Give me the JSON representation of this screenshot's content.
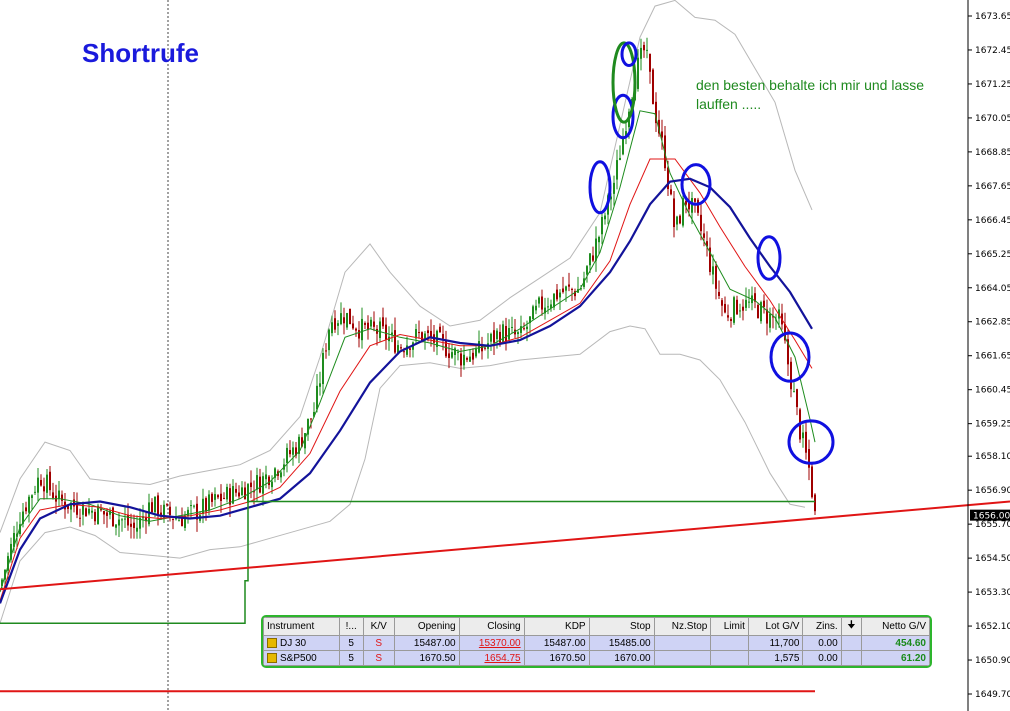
{
  "title": "Shortrufe",
  "annotation": "den besten behalte ich mir und lasse lauffen .....",
  "colors": {
    "background": "#ffffff",
    "title": "#1a1adc",
    "annotation": "#1f8a1f",
    "candle_up": "#1e8c1e",
    "candle_down": "#a00000",
    "ma_fast": "#1e8c1e",
    "ma_mid": "#e01515",
    "ma_slow": "#13139a",
    "bollinger": "#b8b8b8",
    "trendline": "#e01515",
    "marker": "#1010e0"
  },
  "chart_data": {
    "type": "candlestick",
    "y_ticks": [
      "1673.65",
      "1672.45",
      "1671.25",
      "1670.05",
      "1668.85",
      "1667.65",
      "1666.45",
      "1665.25",
      "1664.05",
      "1662.85",
      "1661.65",
      "1660.45",
      "1659.25",
      "1658.10",
      "1656.90",
      "1655.70",
      "1654.50",
      "1653.30",
      "1652.10",
      "1650.90",
      "1649.70"
    ],
    "ylim": [
      1649.0,
      1674.3
    ],
    "current_price": "1656.00",
    "price_path": [
      [
        0,
        1653.5
      ],
      [
        20,
        1656.0
      ],
      [
        40,
        1657.4
      ],
      [
        60,
        1656.5
      ],
      [
        80,
        1656.3
      ],
      [
        100,
        1656.1
      ],
      [
        120,
        1655.9
      ],
      [
        135,
        1655.5
      ],
      [
        150,
        1656.4
      ],
      [
        165,
        1656.1
      ],
      [
        180,
        1655.9
      ],
      [
        200,
        1656.2
      ],
      [
        220,
        1656.6
      ],
      [
        240,
        1656.9
      ],
      [
        260,
        1657.2
      ],
      [
        280,
        1657.8
      ],
      [
        300,
        1658.6
      ],
      [
        315,
        1659.8
      ],
      [
        330,
        1662.9
      ],
      [
        345,
        1663.1
      ],
      [
        360,
        1662.6
      ],
      [
        380,
        1662.5
      ],
      [
        400,
        1662.0
      ],
      [
        420,
        1662.4
      ],
      [
        440,
        1662.1
      ],
      [
        460,
        1661.6
      ],
      [
        480,
        1661.8
      ],
      [
        500,
        1662.5
      ],
      [
        520,
        1662.3
      ],
      [
        540,
        1663.4
      ],
      [
        560,
        1663.9
      ],
      [
        580,
        1664.0
      ],
      [
        600,
        1666.0
      ],
      [
        615,
        1667.9
      ],
      [
        625,
        1669.8
      ],
      [
        635,
        1671.6
      ],
      [
        645,
        1672.5
      ],
      [
        655,
        1670.3
      ],
      [
        665,
        1668.6
      ],
      [
        675,
        1666.0
      ],
      [
        685,
        1667.2
      ],
      [
        695,
        1666.7
      ],
      [
        705,
        1665.6
      ],
      [
        715,
        1664.2
      ],
      [
        725,
        1663.1
      ],
      [
        740,
        1663.5
      ],
      [
        755,
        1663.4
      ],
      [
        770,
        1663.0
      ],
      [
        780,
        1662.9
      ],
      [
        790,
        1661.0
      ],
      [
        800,
        1659.0
      ],
      [
        810,
        1657.5
      ],
      [
        815,
        1656.0
      ]
    ],
    "ma_fast": [
      [
        0,
        1653.3
      ],
      [
        20,
        1655.6
      ],
      [
        40,
        1656.6
      ],
      [
        60,
        1656.6
      ],
      [
        90,
        1656.4
      ],
      [
        120,
        1656.0
      ],
      [
        150,
        1655.8
      ],
      [
        180,
        1656.0
      ],
      [
        210,
        1656.2
      ],
      [
        240,
        1656.6
      ],
      [
        270,
        1657.2
      ],
      [
        300,
        1658.3
      ],
      [
        320,
        1660.0
      ],
      [
        345,
        1662.3
      ],
      [
        370,
        1662.6
      ],
      [
        400,
        1662.3
      ],
      [
        430,
        1662.1
      ],
      [
        460,
        1661.8
      ],
      [
        490,
        1662.0
      ],
      [
        520,
        1662.6
      ],
      [
        550,
        1663.3
      ],
      [
        580,
        1664.0
      ],
      [
        600,
        1665.3
      ],
      [
        620,
        1667.6
      ],
      [
        640,
        1670.3
      ],
      [
        655,
        1670.2
      ],
      [
        670,
        1668.1
      ],
      [
        690,
        1666.6
      ],
      [
        710,
        1665.3
      ],
      [
        730,
        1664.0
      ],
      [
        755,
        1663.6
      ],
      [
        775,
        1663.0
      ],
      [
        795,
        1661.6
      ],
      [
        810,
        1659.4
      ],
      [
        815,
        1658.6
      ]
    ],
    "ma_mid": [
      [
        0,
        1653.0
      ],
      [
        20,
        1655.2
      ],
      [
        40,
        1656.2
      ],
      [
        70,
        1656.4
      ],
      [
        100,
        1656.3
      ],
      [
        130,
        1656.0
      ],
      [
        160,
        1655.9
      ],
      [
        190,
        1656.0
      ],
      [
        220,
        1656.2
      ],
      [
        250,
        1656.5
      ],
      [
        280,
        1657.0
      ],
      [
        310,
        1658.2
      ],
      [
        340,
        1660.4
      ],
      [
        370,
        1662.0
      ],
      [
        400,
        1662.4
      ],
      [
        430,
        1662.2
      ],
      [
        460,
        1662.0
      ],
      [
        490,
        1662.0
      ],
      [
        520,
        1662.3
      ],
      [
        550,
        1662.9
      ],
      [
        580,
        1663.5
      ],
      [
        610,
        1665.0
      ],
      [
        630,
        1667.0
      ],
      [
        650,
        1668.6
      ],
      [
        675,
        1668.6
      ],
      [
        700,
        1667.4
      ],
      [
        720,
        1666.2
      ],
      [
        745,
        1664.8
      ],
      [
        770,
        1663.6
      ],
      [
        795,
        1662.2
      ],
      [
        812,
        1661.2
      ]
    ],
    "ma_slow": [
      [
        0,
        1652.9
      ],
      [
        20,
        1654.8
      ],
      [
        40,
        1655.9
      ],
      [
        70,
        1656.4
      ],
      [
        100,
        1656.5
      ],
      [
        130,
        1656.3
      ],
      [
        160,
        1656.0
      ],
      [
        190,
        1655.9
      ],
      [
        220,
        1656.0
      ],
      [
        250,
        1656.3
      ],
      [
        280,
        1656.6
      ],
      [
        310,
        1657.5
      ],
      [
        340,
        1659.0
      ],
      [
        370,
        1660.7
      ],
      [
        400,
        1661.8
      ],
      [
        430,
        1662.3
      ],
      [
        460,
        1662.1
      ],
      [
        490,
        1662.0
      ],
      [
        520,
        1662.2
      ],
      [
        550,
        1662.7
      ],
      [
        580,
        1663.4
      ],
      [
        610,
        1664.6
      ],
      [
        630,
        1665.7
      ],
      [
        650,
        1667.0
      ],
      [
        670,
        1667.8
      ],
      [
        690,
        1667.9
      ],
      [
        710,
        1667.6
      ],
      [
        730,
        1666.9
      ],
      [
        750,
        1665.8
      ],
      [
        770,
        1664.8
      ],
      [
        790,
        1663.9
      ],
      [
        812,
        1662.6
      ]
    ],
    "bb_upper": [
      [
        0,
        1655.4
      ],
      [
        20,
        1657.3
      ],
      [
        45,
        1658.6
      ],
      [
        70,
        1658.3
      ],
      [
        90,
        1657.3
      ],
      [
        115,
        1657.2
      ],
      [
        150,
        1657.1
      ],
      [
        180,
        1657.4
      ],
      [
        210,
        1657.6
      ],
      [
        240,
        1657.8
      ],
      [
        270,
        1658.3
      ],
      [
        300,
        1659.5
      ],
      [
        320,
        1661.6
      ],
      [
        345,
        1664.6
      ],
      [
        370,
        1665.6
      ],
      [
        390,
        1664.6
      ],
      [
        420,
        1663.4
      ],
      [
        450,
        1662.7
      ],
      [
        480,
        1662.9
      ],
      [
        510,
        1663.7
      ],
      [
        540,
        1664.4
      ],
      [
        570,
        1665.1
      ],
      [
        600,
        1666.7
      ],
      [
        620,
        1669.8
      ],
      [
        640,
        1672.9
      ],
      [
        655,
        1674.0
      ],
      [
        675,
        1674.2
      ],
      [
        695,
        1673.6
      ],
      [
        715,
        1673.5
      ],
      [
        735,
        1673.0
      ],
      [
        755,
        1671.8
      ],
      [
        775,
        1670.6
      ],
      [
        795,
        1668.2
      ],
      [
        812,
        1666.8
      ]
    ],
    "bb_lower": [
      [
        0,
        1652.2
      ],
      [
        20,
        1654.4
      ],
      [
        45,
        1655.4
      ],
      [
        70,
        1655.6
      ],
      [
        95,
        1655.3
      ],
      [
        120,
        1654.7
      ],
      [
        150,
        1654.6
      ],
      [
        180,
        1654.5
      ],
      [
        210,
        1654.8
      ],
      [
        240,
        1654.9
      ],
      [
        270,
        1655.2
      ],
      [
        300,
        1655.5
      ],
      [
        330,
        1655.8
      ],
      [
        350,
        1656.4
      ],
      [
        365,
        1658.0
      ],
      [
        380,
        1660.5
      ],
      [
        400,
        1661.3
      ],
      [
        430,
        1661.4
      ],
      [
        460,
        1661.2
      ],
      [
        490,
        1661.3
      ],
      [
        520,
        1661.5
      ],
      [
        550,
        1661.6
      ],
      [
        580,
        1661.7
      ],
      [
        610,
        1662.5
      ],
      [
        630,
        1662.7
      ],
      [
        645,
        1662.6
      ],
      [
        660,
        1661.7
      ],
      [
        680,
        1661.7
      ],
      [
        700,
        1661.5
      ],
      [
        720,
        1660.8
      ],
      [
        745,
        1659.3
      ],
      [
        770,
        1657.5
      ],
      [
        790,
        1656.4
      ],
      [
        805,
        1656.3
      ]
    ],
    "trendline": [
      [
        0,
        1653.4
      ],
      [
        1010,
        1656.5
      ]
    ],
    "stop_line_green": [
      [
        0,
        1652.2
      ],
      [
        245,
        1652.2
      ],
      [
        245,
        1653.7
      ],
      [
        248,
        1653.7
      ],
      [
        248,
        1656.5
      ],
      [
        815,
        1656.5
      ]
    ],
    "support_line_red": [
      [
        0,
        1649.8
      ],
      [
        815,
        1649.8
      ]
    ],
    "ellipse_markers": [
      {
        "x": 600,
        "y": 1667.6,
        "rx": 10,
        "ry": 0.9,
        "color": "blue"
      },
      {
        "x": 623,
        "y": 1670.1,
        "rx": 10,
        "ry": 0.75,
        "color": "blue"
      },
      {
        "x": 624,
        "y": 1671.3,
        "rx": 11,
        "ry": 1.4,
        "color": "green"
      },
      {
        "x": 629,
        "y": 1672.3,
        "rx": 7,
        "ry": 0.4,
        "color": "blue"
      },
      {
        "x": 696,
        "y": 1667.7,
        "rx": 14,
        "ry": 0.7,
        "color": "blue"
      },
      {
        "x": 769,
        "y": 1665.1,
        "rx": 11,
        "ry": 0.75,
        "color": "blue"
      },
      {
        "x": 790,
        "y": 1661.6,
        "rx": 19,
        "ry": 0.85,
        "color": "blue"
      },
      {
        "x": 811,
        "y": 1658.6,
        "rx": 22,
        "ry": 0.75,
        "color": "blue"
      }
    ],
    "vertical_marker_x": 168
  },
  "table": {
    "headers": [
      "Instrument",
      "!...",
      "K/V",
      "Opening",
      "Closing",
      "KDP",
      "Stop",
      "Nz.Stop",
      "Limit",
      "Lot G/V",
      "Zins.",
      "",
      "Netto G/V"
    ],
    "rows": [
      {
        "instrument": "DJ 30",
        "qty": "5",
        "kv": "S",
        "opening": "15487.00",
        "closing": "15370.00",
        "kdp": "15487.00",
        "stop": "15485.00",
        "nzstop": "",
        "limit": "",
        "lot": "11,700",
        "zins": "0.00",
        "netto": "454.60"
      },
      {
        "instrument": "S&P500",
        "qty": "5",
        "kv": "S",
        "opening": "1670.50",
        "closing": "1654.75",
        "kdp": "1670.50",
        "stop": "1670.00",
        "nzstop": "",
        "limit": "",
        "lot": "1,575",
        "zins": "0.00",
        "netto": "61.20"
      }
    ]
  }
}
